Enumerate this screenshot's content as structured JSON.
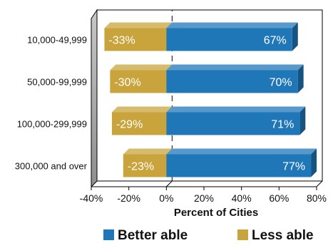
{
  "chart_data": {
    "type": "bar",
    "orientation": "horizontal",
    "stacked": "diverging",
    "categories": [
      "10,000-49,999",
      "50,000-99,999",
      "100,000-299,999",
      "300,000 and over"
    ],
    "series": [
      {
        "name": "Better able",
        "values": [
          67,
          70,
          71,
          77
        ],
        "labels": [
          "67%",
          "70%",
          "71%",
          "77%"
        ],
        "color": "#1f77b8"
      },
      {
        "name": "Less able",
        "values": [
          -33,
          -30,
          -29,
          -23
        ],
        "labels": [
          "-33%",
          "-30%",
          "-29%",
          "-23%"
        ],
        "color": "#c9a43c"
      }
    ],
    "xlabel": "Percent of Cities",
    "xlim": [
      -40,
      80
    ],
    "xticks": [
      -40,
      -20,
      0,
      20,
      40,
      60,
      80
    ],
    "xtick_labels": [
      "-40%",
      "-20%",
      "0%",
      "20%",
      "40%",
      "60%",
      "80%"
    ],
    "legend_position": "bottom",
    "grid": false
  }
}
